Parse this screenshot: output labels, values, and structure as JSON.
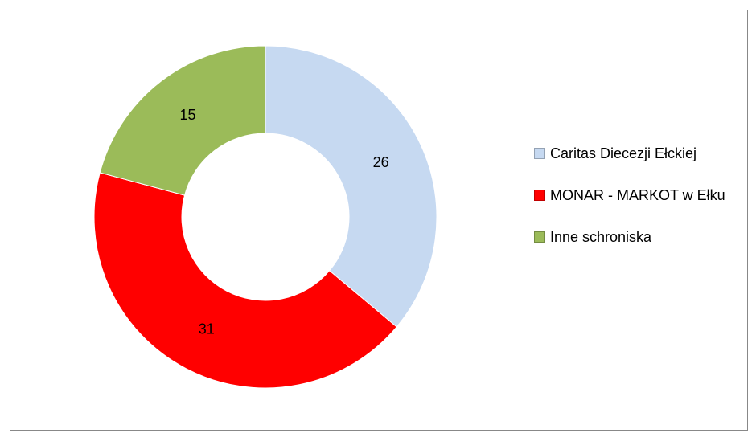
{
  "chart_data": {
    "type": "donut",
    "categories": [
      "Caritas Diecezji Ełckiej",
      "MONAR - MARKOT w Ełku",
      "Inne schroniska"
    ],
    "values": [
      26,
      31,
      15
    ],
    "colors": [
      "#c6d9f1",
      "#ff0000",
      "#9bbb59"
    ],
    "legend": "right"
  }
}
